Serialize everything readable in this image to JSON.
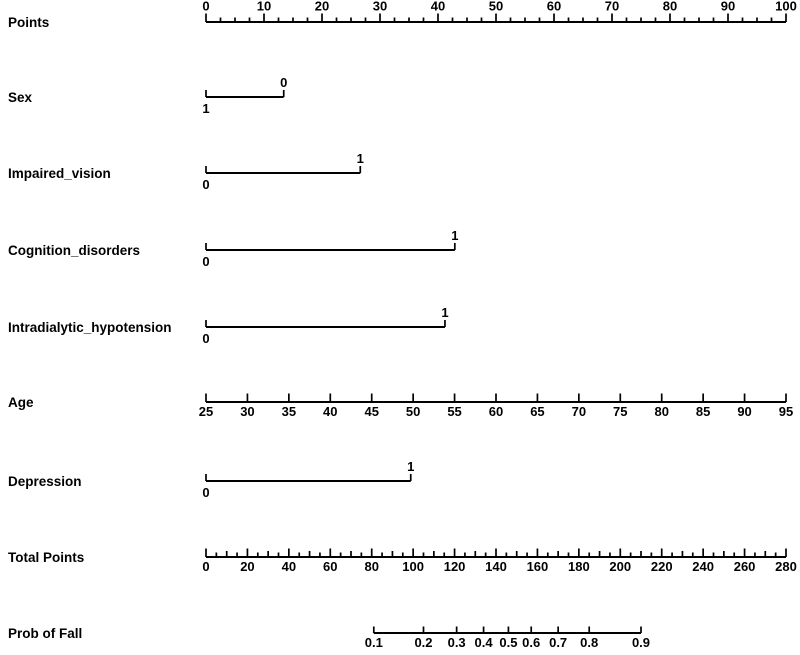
{
  "chart_data": {
    "type": "nomogram",
    "title": "",
    "background_color": "#ffffff",
    "ink_color": "#000000",
    "points_axis_range": [
      0,
      100
    ],
    "rows": [
      {
        "label": "Points",
        "kind": "scale",
        "value_min": 0,
        "value_max": 100,
        "points_min": 0,
        "points_max": 100,
        "major_step": 10,
        "medium_step": null,
        "minor_step": 2.5,
        "labels_side": "above",
        "tick_labels": [
          "0",
          "10",
          "20",
          "30",
          "40",
          "50",
          "60",
          "70",
          "80",
          "90",
          "100"
        ]
      },
      {
        "label": "Sex",
        "kind": "categorical",
        "categories": [
          {
            "value": "1",
            "points": 0,
            "label_side": "below"
          },
          {
            "value": "0",
            "points": 13.4,
            "label_side": "above"
          }
        ]
      },
      {
        "label": "Impaired_vision",
        "kind": "categorical",
        "categories": [
          {
            "value": "0",
            "points": 0,
            "label_side": "below"
          },
          {
            "value": "1",
            "points": 26.6,
            "label_side": "above"
          }
        ]
      },
      {
        "label": "Cognition_disorders",
        "kind": "categorical",
        "categories": [
          {
            "value": "0",
            "points": 0,
            "label_side": "below"
          },
          {
            "value": "1",
            "points": 42.9,
            "label_side": "above"
          }
        ]
      },
      {
        "label": "Intradialytic_hypotension",
        "kind": "categorical",
        "categories": [
          {
            "value": "0",
            "points": 0,
            "label_side": "below"
          },
          {
            "value": "1",
            "points": 41.2,
            "label_side": "above"
          }
        ]
      },
      {
        "label": "Age",
        "kind": "scale",
        "value_min": 25,
        "value_max": 95,
        "points_min": 0,
        "points_max": 100,
        "major_step": 5,
        "medium_step": null,
        "minor_step": null,
        "labels_side": "below",
        "tick_labels": [
          "25",
          "30",
          "35",
          "40",
          "45",
          "50",
          "55",
          "60",
          "65",
          "70",
          "75",
          "80",
          "85",
          "90",
          "95"
        ]
      },
      {
        "label": "Depression",
        "kind": "categorical",
        "categories": [
          {
            "value": "0",
            "points": 0,
            "label_side": "below"
          },
          {
            "value": "1",
            "points": 35.3,
            "label_side": "above"
          }
        ]
      },
      {
        "label": "Total Points",
        "kind": "scale",
        "value_min": 0,
        "value_max": 280,
        "points_min": 0,
        "points_max": 100,
        "major_step": 20,
        "medium_step": 10,
        "minor_step": 5,
        "labels_side": "below",
        "tick_labels": [
          "0",
          "20",
          "40",
          "60",
          "80",
          "100",
          "120",
          "140",
          "160",
          "180",
          "200",
          "220",
          "240",
          "260",
          "280"
        ]
      },
      {
        "label": "Prob of Fall",
        "kind": "prob",
        "labels_side": "below",
        "total_points_range": [
          0,
          280
        ],
        "ticks": [
          {
            "value": "0.1",
            "total_points": 81
          },
          {
            "value": "0.2",
            "total_points": 105
          },
          {
            "value": "0.3",
            "total_points": 121
          },
          {
            "value": "0.4",
            "total_points": 134
          },
          {
            "value": "0.5",
            "total_points": 146
          },
          {
            "value": "0.6",
            "total_points": 157
          },
          {
            "value": "0.7",
            "total_points": 170
          },
          {
            "value": "0.8",
            "total_points": 185
          },
          {
            "value": "0.9",
            "total_points": 210
          }
        ]
      }
    ]
  }
}
